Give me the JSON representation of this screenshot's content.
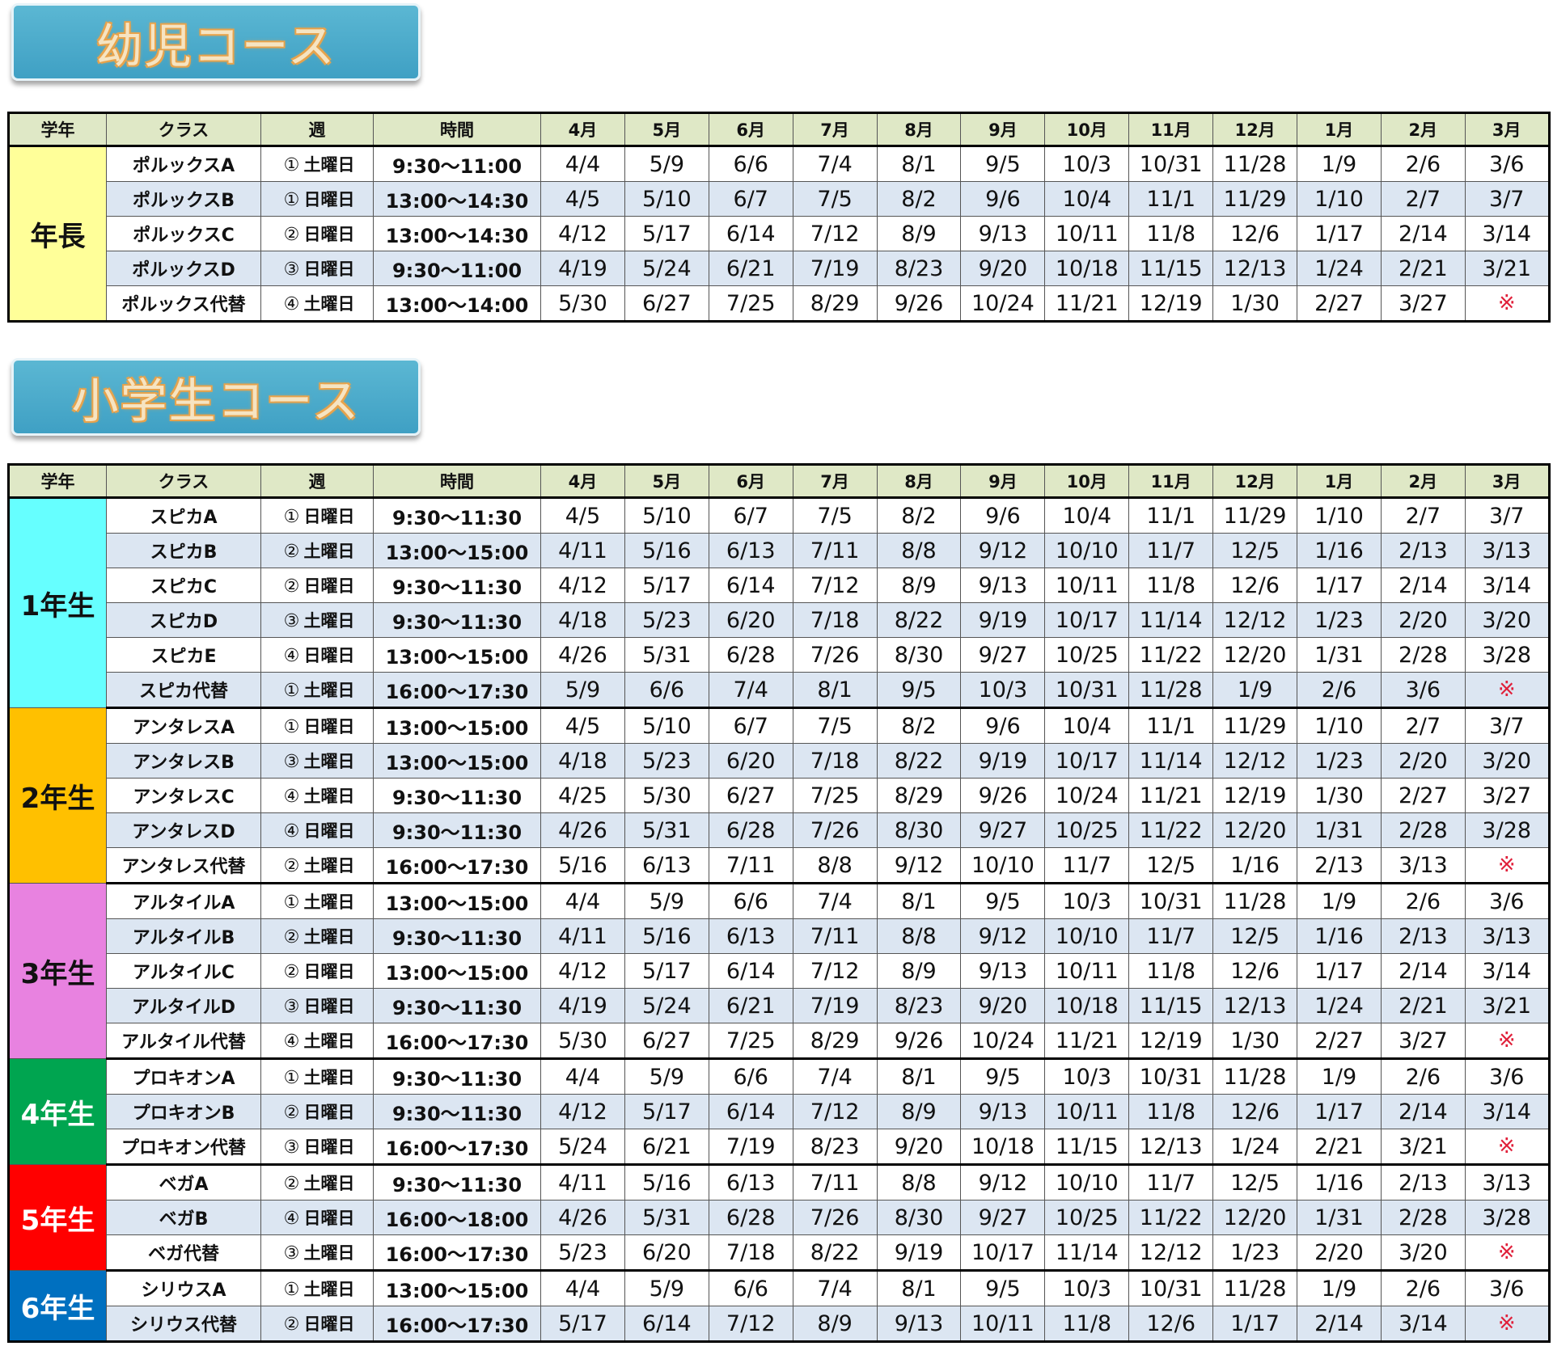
{
  "headers": [
    "学年",
    "クラス",
    "週",
    "時間",
    "4月",
    "5月",
    "6月",
    "7月",
    "8月",
    "9月",
    "10月",
    "11月",
    "12月",
    "1月",
    "2月",
    "3月"
  ],
  "sections": [
    {
      "title": "幼児コース",
      "groups": [
        {
          "grade": "年長",
          "color": "#ffff99",
          "text_color": "#111111",
          "rows": [
            {
              "cls": "ポルックスA",
              "week": "①",
              "day": "土曜日",
              "time": "9:30～11:00",
              "dates": [
                "4/4",
                "5/9",
                "6/6",
                "7/4",
                "8/1",
                "9/5",
                "10/3",
                "10/31",
                "11/28",
                "1/9",
                "2/6",
                "3/6"
              ]
            },
            {
              "cls": "ポルックスB",
              "week": "①",
              "day": "日曜日",
              "time": "13:00～14:30",
              "dates": [
                "4/5",
                "5/10",
                "6/7",
                "7/5",
                "8/2",
                "9/6",
                "10/4",
                "11/1",
                "11/29",
                "1/10",
                "2/7",
                "3/7"
              ]
            },
            {
              "cls": "ポルックスC",
              "week": "②",
              "day": "日曜日",
              "time": "13:00～14:30",
              "dates": [
                "4/12",
                "5/17",
                "6/14",
                "7/12",
                "8/9",
                "9/13",
                "10/11",
                "11/8",
                "12/6",
                "1/17",
                "2/14",
                "3/14"
              ]
            },
            {
              "cls": "ポルックスD",
              "week": "③",
              "day": "日曜日",
              "time": "9:30～11:00",
              "dates": [
                "4/19",
                "5/24",
                "6/21",
                "7/19",
                "8/23",
                "9/20",
                "10/18",
                "11/15",
                "12/13",
                "1/24",
                "2/21",
                "3/21"
              ]
            },
            {
              "cls": "ポルックス代替",
              "week": "④",
              "day": "土曜日",
              "time": "13:00～14:00",
              "dates": [
                "5/30",
                "6/27",
                "7/25",
                "8/29",
                "9/26",
                "10/24",
                "11/21",
                "12/19",
                "1/30",
                "2/27",
                "3/27",
                "※"
              ]
            }
          ]
        }
      ]
    },
    {
      "title": "小学生コース",
      "groups": [
        {
          "grade": "1年生",
          "color": "#66ffff",
          "text_color": "#111111",
          "rows": [
            {
              "cls": "スピカA",
              "week": "①",
              "day": "日曜日",
              "time": "9:30～11:30",
              "dates": [
                "4/5",
                "5/10",
                "6/7",
                "7/5",
                "8/2",
                "9/6",
                "10/4",
                "11/1",
                "11/29",
                "1/10",
                "2/7",
                "3/7"
              ]
            },
            {
              "cls": "スピカB",
              "week": "②",
              "day": "土曜日",
              "time": "13:00～15:00",
              "dates": [
                "4/11",
                "5/16",
                "6/13",
                "7/11",
                "8/8",
                "9/12",
                "10/10",
                "11/7",
                "12/5",
                "1/16",
                "2/13",
                "3/13"
              ]
            },
            {
              "cls": "スピカC",
              "week": "②",
              "day": "日曜日",
              "time": "9:30～11:30",
              "dates": [
                "4/12",
                "5/17",
                "6/14",
                "7/12",
                "8/9",
                "9/13",
                "10/11",
                "11/8",
                "12/6",
                "1/17",
                "2/14",
                "3/14"
              ]
            },
            {
              "cls": "スピカD",
              "week": "③",
              "day": "土曜日",
              "time": "9:30～11:30",
              "dates": [
                "4/18",
                "5/23",
                "6/20",
                "7/18",
                "8/22",
                "9/19",
                "10/17",
                "11/14",
                "12/12",
                "1/23",
                "2/20",
                "3/20"
              ]
            },
            {
              "cls": "スピカE",
              "week": "④",
              "day": "日曜日",
              "time": "13:00～15:00",
              "dates": [
                "4/26",
                "5/31",
                "6/28",
                "7/26",
                "8/30",
                "9/27",
                "10/25",
                "11/22",
                "12/20",
                "1/31",
                "2/28",
                "3/28"
              ]
            },
            {
              "cls": "スピカ代替",
              "week": "①",
              "day": "土曜日",
              "time": "16:00～17:30",
              "dates": [
                "5/9",
                "6/6",
                "7/4",
                "8/1",
                "9/5",
                "10/3",
                "10/31",
                "11/28",
                "1/9",
                "2/6",
                "3/6",
                "※"
              ]
            }
          ]
        },
        {
          "grade": "2年生",
          "color": "#ffc000",
          "text_color": "#111111",
          "rows": [
            {
              "cls": "アンタレスA",
              "week": "①",
              "day": "日曜日",
              "time": "13:00～15:00",
              "dates": [
                "4/5",
                "5/10",
                "6/7",
                "7/5",
                "8/2",
                "9/6",
                "10/4",
                "11/1",
                "11/29",
                "1/10",
                "2/7",
                "3/7"
              ]
            },
            {
              "cls": "アンタレスB",
              "week": "③",
              "day": "土曜日",
              "time": "13:00～15:00",
              "dates": [
                "4/18",
                "5/23",
                "6/20",
                "7/18",
                "8/22",
                "9/19",
                "10/17",
                "11/14",
                "12/12",
                "1/23",
                "2/20",
                "3/20"
              ]
            },
            {
              "cls": "アンタレスC",
              "week": "④",
              "day": "土曜日",
              "time": "9:30～11:30",
              "dates": [
                "4/25",
                "5/30",
                "6/27",
                "7/25",
                "8/29",
                "9/26",
                "10/24",
                "11/21",
                "12/19",
                "1/30",
                "2/27",
                "3/27"
              ]
            },
            {
              "cls": "アンタレスD",
              "week": "④",
              "day": "日曜日",
              "time": "9:30～11:30",
              "dates": [
                "4/26",
                "5/31",
                "6/28",
                "7/26",
                "8/30",
                "9/27",
                "10/25",
                "11/22",
                "12/20",
                "1/31",
                "2/28",
                "3/28"
              ]
            },
            {
              "cls": "アンタレス代替",
              "week": "②",
              "day": "土曜日",
              "time": "16:00～17:30",
              "dates": [
                "5/16",
                "6/13",
                "7/11",
                "8/8",
                "9/12",
                "10/10",
                "11/7",
                "12/5",
                "1/16",
                "2/13",
                "3/13",
                "※"
              ]
            }
          ]
        },
        {
          "grade": "3年生",
          "color": "#e882e0",
          "text_color": "#111111",
          "rows": [
            {
              "cls": "アルタイルA",
              "week": "①",
              "day": "土曜日",
              "time": "13:00～15:00",
              "dates": [
                "4/4",
                "5/9",
                "6/6",
                "7/4",
                "8/1",
                "9/5",
                "10/3",
                "10/31",
                "11/28",
                "1/9",
                "2/6",
                "3/6"
              ]
            },
            {
              "cls": "アルタイルB",
              "week": "②",
              "day": "土曜日",
              "time": "9:30～11:30",
              "dates": [
                "4/11",
                "5/16",
                "6/13",
                "7/11",
                "8/8",
                "9/12",
                "10/10",
                "11/7",
                "12/5",
                "1/16",
                "2/13",
                "3/13"
              ]
            },
            {
              "cls": "アルタイルC",
              "week": "②",
              "day": "日曜日",
              "time": "13:00～15:00",
              "dates": [
                "4/12",
                "5/17",
                "6/14",
                "7/12",
                "8/9",
                "9/13",
                "10/11",
                "11/8",
                "12/6",
                "1/17",
                "2/14",
                "3/14"
              ]
            },
            {
              "cls": "アルタイルD",
              "week": "③",
              "day": "日曜日",
              "time": "9:30～11:30",
              "dates": [
                "4/19",
                "5/24",
                "6/21",
                "7/19",
                "8/23",
                "9/20",
                "10/18",
                "11/15",
                "12/13",
                "1/24",
                "2/21",
                "3/21"
              ]
            },
            {
              "cls": "アルタイル代替",
              "week": "④",
              "day": "土曜日",
              "time": "16:00～17:30",
              "dates": [
                "5/30",
                "6/27",
                "7/25",
                "8/29",
                "9/26",
                "10/24",
                "11/21",
                "12/19",
                "1/30",
                "2/27",
                "3/27",
                "※"
              ]
            }
          ]
        },
        {
          "grade": "4年生",
          "color": "#00a550",
          "text_color": "#ffffff",
          "rows": [
            {
              "cls": "プロキオンA",
              "week": "①",
              "day": "土曜日",
              "time": "9:30～11:30",
              "dates": [
                "4/4",
                "5/9",
                "6/6",
                "7/4",
                "8/1",
                "9/5",
                "10/3",
                "10/31",
                "11/28",
                "1/9",
                "2/6",
                "3/6"
              ]
            },
            {
              "cls": "プロキオンB",
              "week": "②",
              "day": "日曜日",
              "time": "9:30～11:30",
              "dates": [
                "4/12",
                "5/17",
                "6/14",
                "7/12",
                "8/9",
                "9/13",
                "10/11",
                "11/8",
                "12/6",
                "1/17",
                "2/14",
                "3/14"
              ]
            },
            {
              "cls": "プロキオン代替",
              "week": "③",
              "day": "日曜日",
              "time": "16:00～17:30",
              "dates": [
                "5/24",
                "6/21",
                "7/19",
                "8/23",
                "9/20",
                "10/18",
                "11/15",
                "12/13",
                "1/24",
                "2/21",
                "3/21",
                "※"
              ]
            }
          ]
        },
        {
          "grade": "5年生",
          "color": "#ff0000",
          "text_color": "#ffffff",
          "rows": [
            {
              "cls": "ベガA",
              "week": "②",
              "day": "土曜日",
              "time": "9:30～11:30",
              "dates": [
                "4/11",
                "5/16",
                "6/13",
                "7/11",
                "8/8",
                "9/12",
                "10/10",
                "11/7",
                "12/5",
                "1/16",
                "2/13",
                "3/13"
              ]
            },
            {
              "cls": "ベガB",
              "week": "④",
              "day": "日曜日",
              "time": "16:00～18:00",
              "dates": [
                "4/26",
                "5/31",
                "6/28",
                "7/26",
                "8/30",
                "9/27",
                "10/25",
                "11/22",
                "12/20",
                "1/31",
                "2/28",
                "3/28"
              ]
            },
            {
              "cls": "ベガ代替",
              "week": "③",
              "day": "土曜日",
              "time": "16:00～17:30",
              "dates": [
                "5/23",
                "6/20",
                "7/18",
                "8/22",
                "9/19",
                "10/17",
                "11/14",
                "12/12",
                "1/23",
                "2/20",
                "3/20",
                "※"
              ]
            }
          ]
        },
        {
          "grade": "6年生",
          "color": "#0070c0",
          "text_color": "#ffffff",
          "rows": [
            {
              "cls": "シリウスA",
              "week": "①",
              "day": "土曜日",
              "time": "13:00～15:00",
              "dates": [
                "4/4",
                "5/9",
                "6/6",
                "7/4",
                "8/1",
                "9/5",
                "10/3",
                "10/31",
                "11/28",
                "1/9",
                "2/6",
                "3/6"
              ]
            },
            {
              "cls": "シリウス代替",
              "week": "②",
              "day": "日曜日",
              "time": "16:00～17:30",
              "dates": [
                "5/17",
                "6/14",
                "7/12",
                "8/9",
                "9/13",
                "10/11",
                "11/8",
                "12/6",
                "1/17",
                "2/14",
                "3/14",
                "※"
              ]
            }
          ]
        }
      ]
    }
  ]
}
